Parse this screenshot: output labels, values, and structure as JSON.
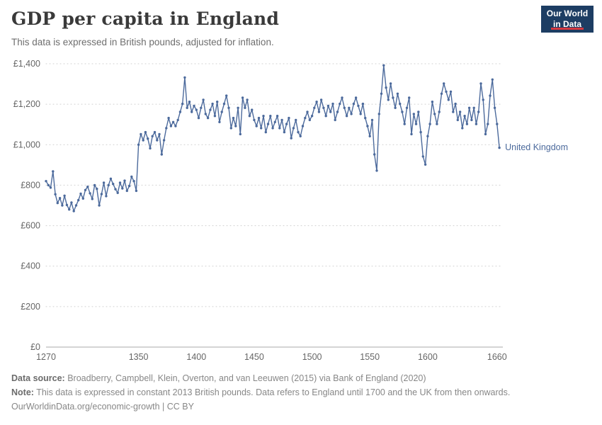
{
  "header": {
    "title": "GDP per capita in England",
    "subtitle": "This data is expressed in British pounds, adjusted for inflation.",
    "logo": {
      "line1": "Our World",
      "line2": "in Data"
    }
  },
  "footer": {
    "source_label": "Data source:",
    "source_text": " Broadberry, Campbell, Klein, Overton, and van Leeuwen (2015) via Bank of England (2020)",
    "note_label": "Note:",
    "note_text": " This data is expressed in constant 2013 British pounds. Data refers to England until 1700 and the UK from then onwards.",
    "link": "OurWorldinData.org/economic-growth",
    "license": " | CC BY"
  },
  "chart_data": {
    "type": "line",
    "title": "GDP per capita in England",
    "subtitle": "This data is expressed in British pounds, adjusted for inflation.",
    "xlabel": "",
    "ylabel": "",
    "xlim": [
      1270,
      1665
    ],
    "ylim": [
      0,
      1400
    ],
    "xticks": [
      1270,
      1350,
      1400,
      1450,
      1500,
      1550,
      1600,
      1660
    ],
    "yticks": [
      0,
      200,
      400,
      600,
      800,
      1000,
      1200,
      1400
    ],
    "ytick_labels": [
      "£0",
      "£200",
      "£400",
      "£600",
      "£800",
      "£1,000",
      "£1,200",
      "£1,400"
    ],
    "grid": "dotted-horizontal",
    "legend_position": "right-of-line",
    "color": "#4c6a9c",
    "x": [
      1270,
      1272,
      1274,
      1276,
      1278,
      1280,
      1282,
      1284,
      1286,
      1288,
      1290,
      1292,
      1294,
      1296,
      1298,
      1300,
      1302,
      1304,
      1306,
      1308,
      1310,
      1312,
      1314,
      1316,
      1318,
      1320,
      1322,
      1324,
      1326,
      1328,
      1330,
      1332,
      1334,
      1336,
      1338,
      1340,
      1342,
      1344,
      1346,
      1348,
      1350,
      1352,
      1354,
      1356,
      1358,
      1360,
      1362,
      1364,
      1366,
      1368,
      1370,
      1372,
      1374,
      1376,
      1378,
      1380,
      1382,
      1384,
      1386,
      1388,
      1390,
      1392,
      1394,
      1396,
      1398,
      1400,
      1402,
      1404,
      1406,
      1408,
      1410,
      1412,
      1414,
      1416,
      1418,
      1420,
      1422,
      1424,
      1426,
      1428,
      1430,
      1432,
      1434,
      1436,
      1438,
      1440,
      1442,
      1444,
      1446,
      1448,
      1450,
      1452,
      1454,
      1456,
      1458,
      1460,
      1462,
      1464,
      1466,
      1468,
      1470,
      1472,
      1474,
      1476,
      1478,
      1480,
      1482,
      1484,
      1486,
      1488,
      1490,
      1492,
      1494,
      1496,
      1498,
      1500,
      1502,
      1504,
      1506,
      1508,
      1510,
      1512,
      1514,
      1516,
      1518,
      1520,
      1522,
      1524,
      1526,
      1528,
      1530,
      1532,
      1534,
      1536,
      1538,
      1540,
      1542,
      1544,
      1546,
      1548,
      1550,
      1552,
      1554,
      1556,
      1558,
      1560,
      1562,
      1564,
      1566,
      1568,
      1570,
      1572,
      1574,
      1576,
      1578,
      1580,
      1582,
      1584,
      1586,
      1588,
      1590,
      1592,
      1594,
      1596,
      1598,
      1600,
      1602,
      1604,
      1606,
      1608,
      1610,
      1612,
      1614,
      1616,
      1618,
      1620,
      1622,
      1624,
      1626,
      1628,
      1630,
      1632,
      1634,
      1636,
      1638,
      1640,
      1642,
      1644,
      1646,
      1648,
      1650,
      1652,
      1654,
      1656,
      1658,
      1660,
      1662
    ],
    "series": [
      {
        "name": "United Kingdom",
        "values": [
          820,
          800,
          788,
          868,
          755,
          712,
          736,
          700,
          748,
          702,
          680,
          714,
          672,
          700,
          726,
          758,
          734,
          776,
          792,
          760,
          732,
          800,
          782,
          700,
          756,
          812,
          746,
          800,
          832,
          806,
          780,
          762,
          812,
          784,
          822,
          772,
          796,
          842,
          820,
          772,
          1000,
          1052,
          1022,
          1062,
          1030,
          982,
          1042,
          1062,
          1022,
          1052,
          952,
          1022,
          1082,
          1132,
          1092,
          1112,
          1092,
          1122,
          1162,
          1202,
          1332,
          1182,
          1212,
          1162,
          1192,
          1172,
          1132,
          1182,
          1222,
          1152,
          1132,
          1172,
          1202,
          1142,
          1212,
          1112,
          1162,
          1202,
          1242,
          1182,
          1082,
          1132,
          1092,
          1182,
          1052,
          1232,
          1182,
          1222,
          1142,
          1172,
          1122,
          1092,
          1132,
          1082,
          1142,
          1062,
          1102,
          1142,
          1082,
          1112,
          1142,
          1082,
          1122,
          1062,
          1102,
          1132,
          1032,
          1082,
          1122,
          1062,
          1042,
          1092,
          1132,
          1162,
          1122,
          1142,
          1182,
          1212,
          1162,
          1222,
          1182,
          1142,
          1192,
          1162,
          1202,
          1122,
          1162,
          1202,
          1232,
          1182,
          1142,
          1182,
          1152,
          1202,
          1232,
          1192,
          1152,
          1202,
          1132,
          1092,
          1042,
          1122,
          952,
          872,
          1152,
          1252,
          1392,
          1282,
          1222,
          1302,
          1232,
          1182,
          1252,
          1202,
          1162,
          1102,
          1182,
          1232,
          1052,
          1152,
          1102,
          1162,
          1062,
          942,
          902,
          1042,
          1102,
          1212,
          1152,
          1102,
          1162,
          1252,
          1302,
          1262,
          1222,
          1262,
          1162,
          1202,
          1122,
          1162,
          1082,
          1142,
          1102,
          1182,
          1122,
          1182,
          1102,
          1162,
          1302,
          1222,
          1052,
          1102,
          1242,
          1322,
          1182,
          1102,
          985
        ]
      }
    ]
  }
}
